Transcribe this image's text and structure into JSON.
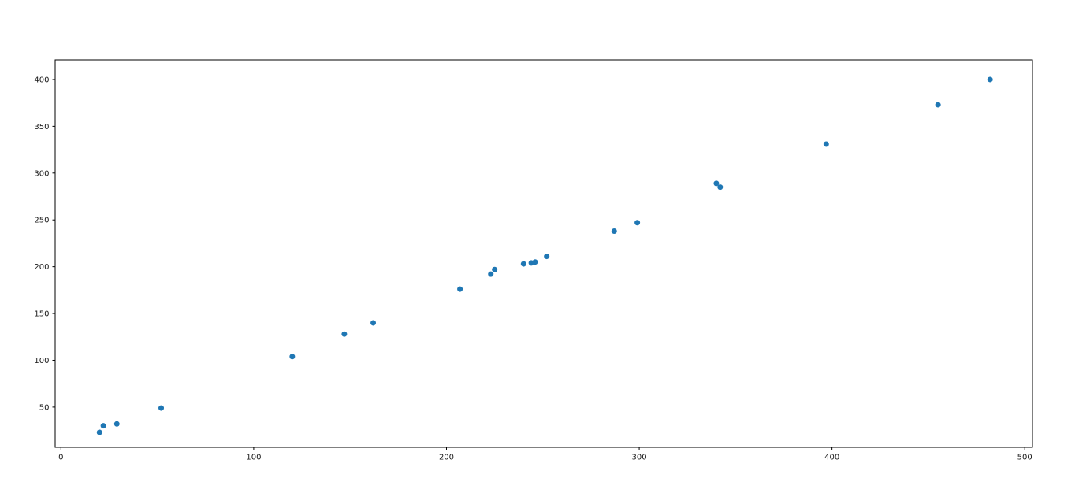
{
  "figure": {
    "background_color": "#ffffff",
    "spine_color": "#000000",
    "tick_label_color": "#1a1a1a"
  },
  "chart_data": {
    "type": "scatter",
    "title": "",
    "xlabel": "",
    "ylabel": "",
    "grid": false,
    "legend_position": "none",
    "marker_color": "#1f77b4",
    "marker_radius_px": 3.5,
    "xlim": [
      -3,
      504
    ],
    "ylim": [
      7,
      421
    ],
    "x_ticks": [
      0,
      100,
      200,
      300,
      400,
      500
    ],
    "y_ticks": [
      50,
      100,
      150,
      200,
      250,
      300,
      350,
      400
    ],
    "points": [
      [
        20,
        23
      ],
      [
        22,
        30
      ],
      [
        29,
        32
      ],
      [
        52,
        49
      ],
      [
        120,
        104
      ],
      [
        147,
        128
      ],
      [
        162,
        140
      ],
      [
        207,
        176
      ],
      [
        223,
        192
      ],
      [
        225,
        197
      ],
      [
        240,
        203
      ],
      [
        244,
        204
      ],
      [
        246,
        205
      ],
      [
        252,
        211
      ],
      [
        287,
        238
      ],
      [
        299,
        247
      ],
      [
        340,
        289
      ],
      [
        342,
        285
      ],
      [
        397,
        331
      ],
      [
        455,
        373
      ],
      [
        482,
        400
      ]
    ]
  }
}
